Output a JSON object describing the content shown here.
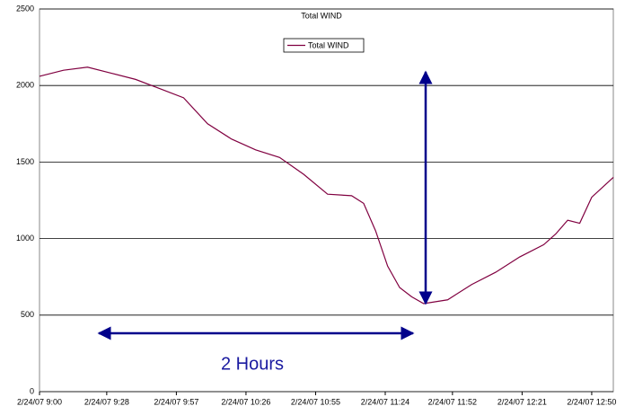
{
  "chart_data": {
    "type": "line",
    "title": "Total WIND",
    "x": [
      "2/24/07 9:00",
      "2/24/07 9:10",
      "2/24/07 9:20",
      "2/24/07 9:30",
      "2/24/07 9:40",
      "2/24/07 9:50",
      "2/24/07 10:00",
      "2/24/07 10:10",
      "2/24/07 10:20",
      "2/24/07 10:30",
      "2/24/07 10:40",
      "2/24/07 10:50",
      "2/24/07 11:00",
      "2/24/07 11:10",
      "2/24/07 11:15",
      "2/24/07 11:20",
      "2/24/07 11:25",
      "2/24/07 11:30",
      "2/24/07 11:35",
      "2/24/07 11:40",
      "2/24/07 11:50",
      "2/24/07 12:00",
      "2/24/07 12:10",
      "2/24/07 12:20",
      "2/24/07 12:30",
      "2/24/07 12:35",
      "2/24/07 12:40",
      "2/24/07 12:45",
      "2/24/07 12:50",
      "2/24/07 12:59"
    ],
    "series": [
      {
        "name": "Total WIND",
        "color": "#800040",
        "values": [
          2060,
          2100,
          2120,
          2080,
          2040,
          1980,
          1920,
          1750,
          1650,
          1580,
          1530,
          1420,
          1290,
          1280,
          1230,
          1050,
          820,
          680,
          620,
          575,
          600,
          700,
          780,
          880,
          960,
          1030,
          1120,
          1100,
          1270,
          1400
        ]
      }
    ],
    "xlim": [
      "2/24/07 9:00",
      "2/24/07 12:59"
    ],
    "xticks": [
      "2/24/07 9:00",
      "2/24/07 9:28",
      "2/24/07 9:57",
      "2/24/07 10:26",
      "2/24/07 10:55",
      "2/24/07 11:24",
      "2/24/07 11:52",
      "2/24/07 12:21",
      "2/24/07 12:50"
    ],
    "ylim": [
      0,
      2500
    ],
    "yticks": [
      0,
      500,
      1000,
      1500,
      2000,
      2500
    ],
    "grid": true,
    "annotations": [
      "2 Hours"
    ]
  }
}
